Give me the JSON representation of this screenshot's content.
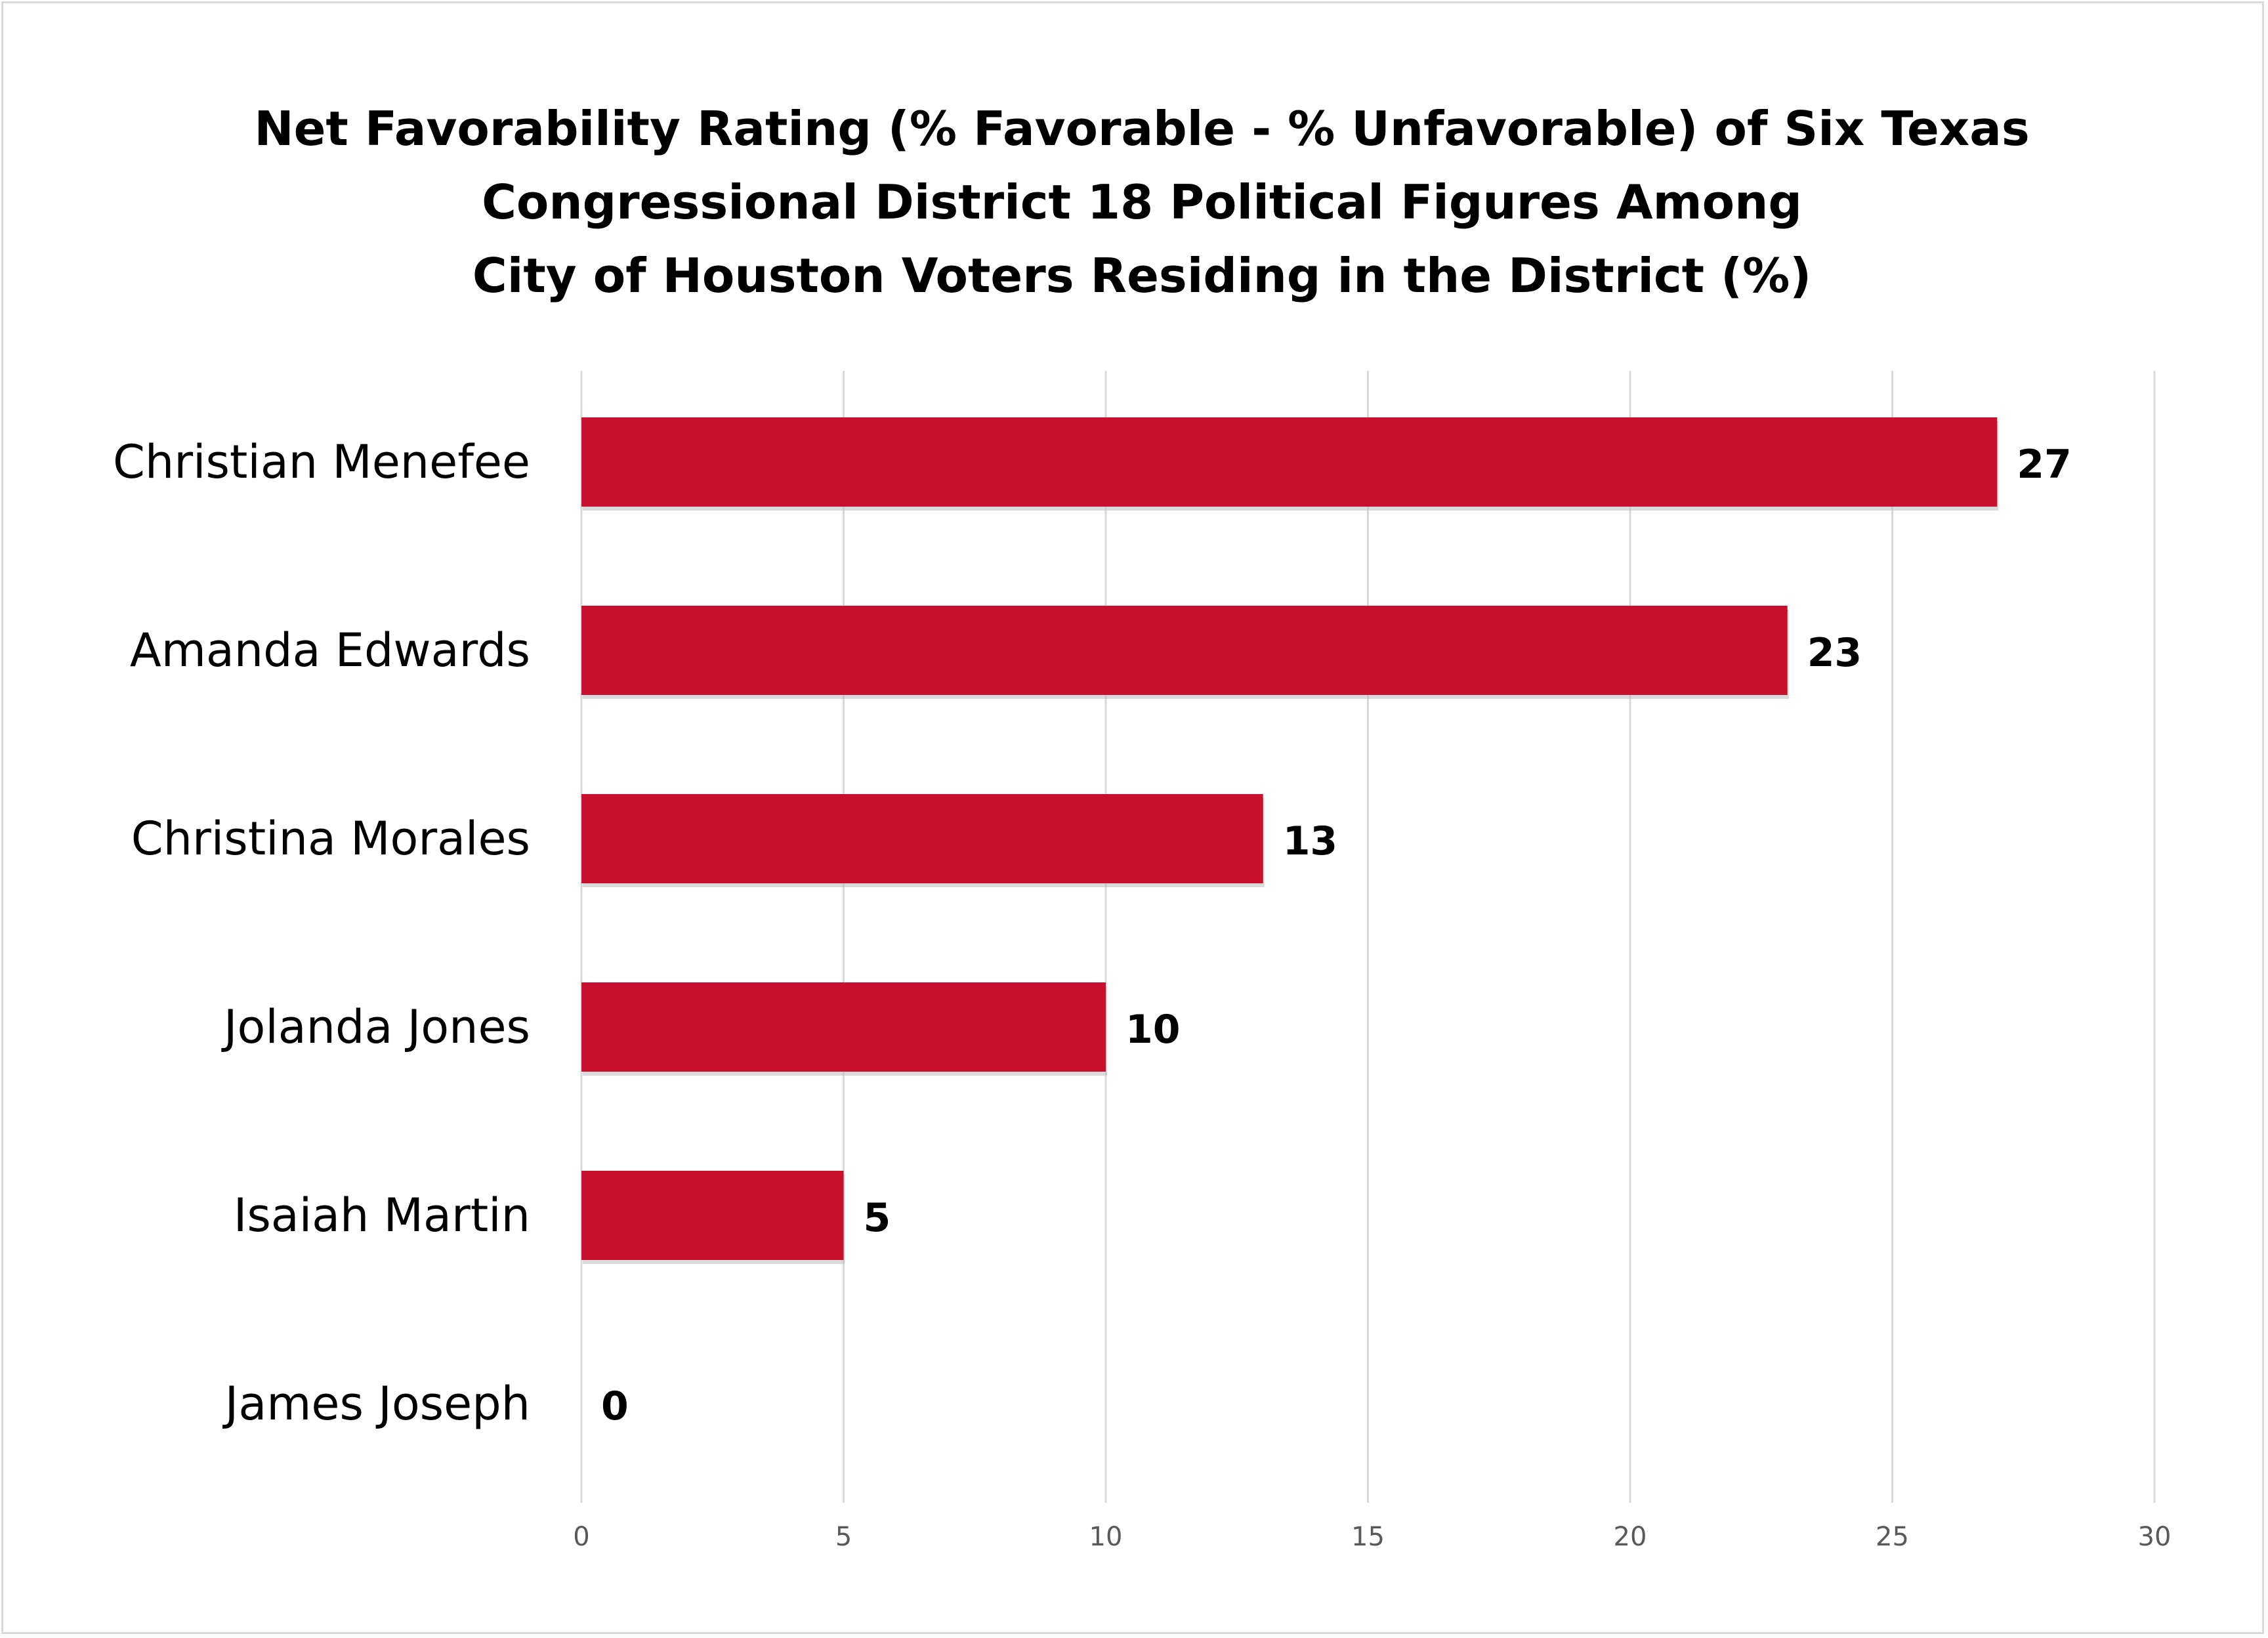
{
  "chart_data": {
    "type": "bar",
    "orientation": "horizontal",
    "title_lines": [
      "Net Favorability Rating (% Favorable - % Unfavorable) of Six Texas",
      "Congressional District 18 Political Figures Among",
      "City of Houston Voters Residing in the District (%)"
    ],
    "categories": [
      "Christian Menefee",
      "Amanda Edwards",
      "Christina Morales",
      "Jolanda Jones",
      "Isaiah Martin",
      "James Joseph"
    ],
    "values": [
      27,
      23,
      13,
      10,
      5,
      0
    ],
    "xlim": [
      0,
      30
    ],
    "xticks": [
      0,
      5,
      10,
      15,
      20,
      25,
      30
    ],
    "grid": "vertical",
    "data_labels": true,
    "bar_color": "#c8102e",
    "legend": "none"
  }
}
